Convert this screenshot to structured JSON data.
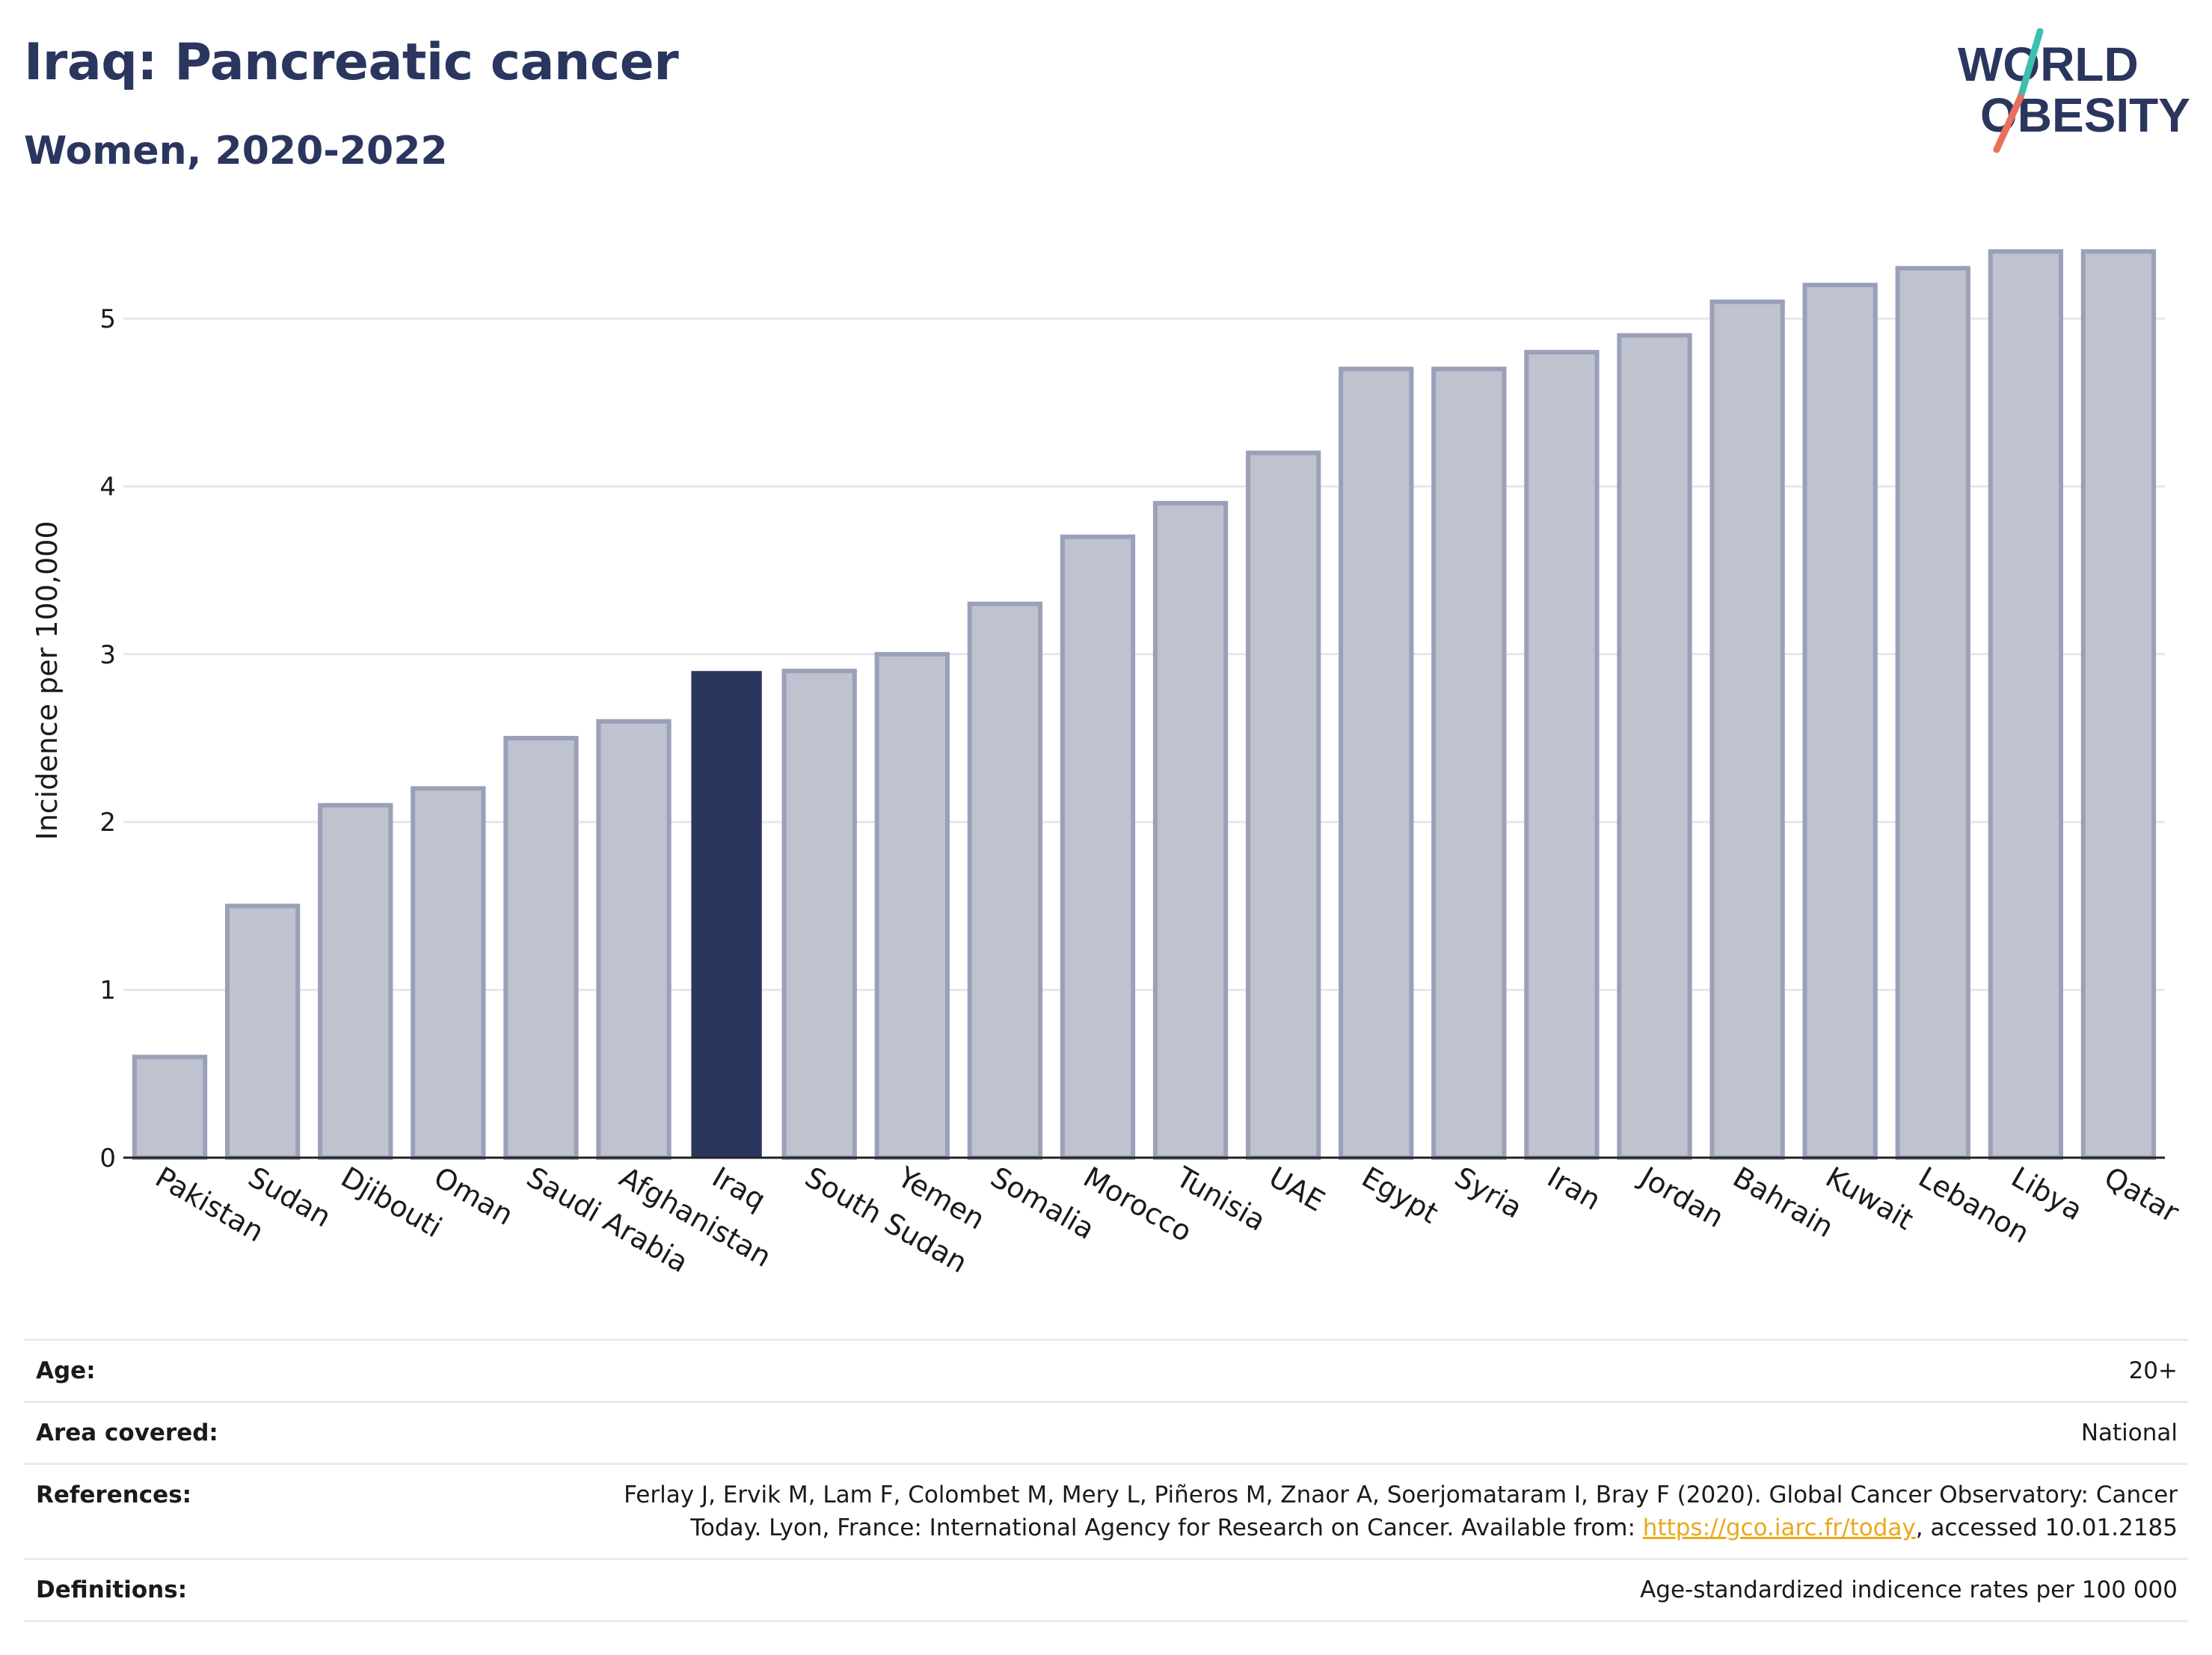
{
  "header": {
    "title": "Iraq: Pancreatic cancer",
    "subtitle": "Women, 2020-2022"
  },
  "logo": {
    "line1": "WORLD",
    "line2": "OBESITY",
    "colors": {
      "text": "#2b365f",
      "slash_teal": "#3bbfb0",
      "slash_coral": "#e8705c"
    }
  },
  "colors": {
    "highlight_bar": "#2b365f",
    "other_bar_fill": "#bfc2cf",
    "other_bar_stroke": "#9aa0b8",
    "grid": "#e6e7ee",
    "axis": "#222222"
  },
  "chart_data": {
    "type": "bar",
    "categories": [
      "Pakistan",
      "Sudan",
      "Djibouti",
      "Oman",
      "Saudi Arabia",
      "Afghanistan",
      "Iraq",
      "South Sudan",
      "Yemen",
      "Somalia",
      "Morocco",
      "Tunisia",
      "UAE",
      "Egypt",
      "Syria",
      "Iran",
      "Jordan",
      "Bahrain",
      "Kuwait",
      "Lebanon",
      "Libya",
      "Qatar"
    ],
    "values": [
      0.6,
      1.5,
      2.1,
      2.2,
      2.5,
      2.6,
      2.9,
      2.9,
      3.0,
      3.3,
      3.7,
      3.9,
      4.2,
      4.7,
      4.7,
      4.8,
      4.9,
      5.1,
      5.2,
      5.3,
      5.4,
      5.4
    ],
    "highlight": "Iraq",
    "ylabel": "Incidence per 100,000",
    "xlabel": "",
    "ylim": [
      0,
      5.4
    ],
    "yticks": [
      0,
      1,
      2,
      3,
      4,
      5
    ],
    "grid": true,
    "tick_label_rotation_deg": 30
  },
  "info": {
    "rows": [
      {
        "label": "Age:",
        "value": "20+"
      },
      {
        "label": "Area covered:",
        "value": "National"
      },
      {
        "label": "References:",
        "value_line1": "Ferlay J, Ervik M, Lam F, Colombet M, Mery L, Piñeros M, Znaor A, Soerjomataram I, Bray F (2020). Global Cancer Observatory: Cancer",
        "value_line2_prefix": "Today. Lyon, France: International Agency for Research on Cancer. Available from: ",
        "link_text": "https://gco.iarc.fr/today",
        "value_line2_suffix": ", accessed 10.01.2185"
      },
      {
        "label": "Definitions:",
        "value": "Age-standardized indicence rates per 100 000"
      }
    ]
  }
}
